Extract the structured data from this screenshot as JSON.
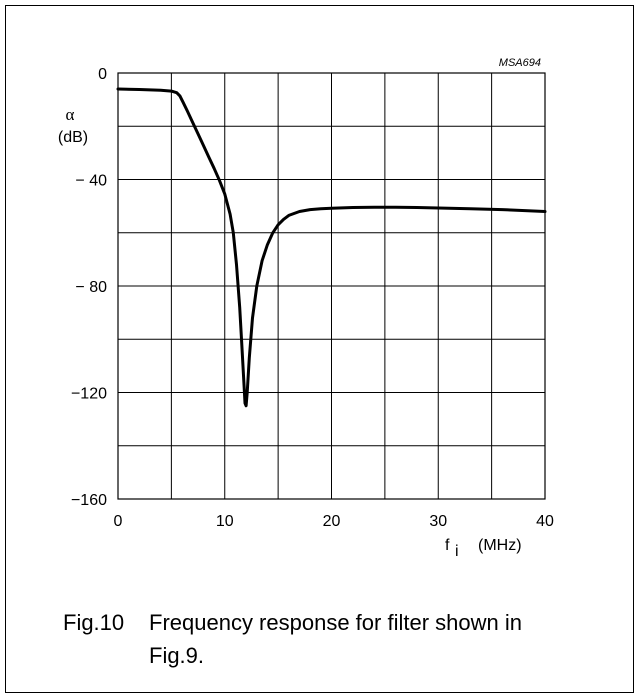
{
  "chart_data": {
    "type": "line",
    "code": "MSA694",
    "ylabel_symbol": "α",
    "ylabel_unit": "(dB)",
    "xlabel_symbol": "f",
    "xlabel_subscript": "i",
    "xlabel_unit": "(MHz)",
    "xlim": [
      0,
      40
    ],
    "ylim": [
      -160,
      0
    ],
    "x_ticks": [
      0,
      10,
      20,
      30,
      40
    ],
    "y_ticks": [
      0,
      -40,
      -80,
      -120,
      -160
    ],
    "y_tick_labels": [
      "0",
      "− 40",
      "− 80",
      "−120",
      "−160"
    ],
    "x_grid_step": 5,
    "y_grid_step": 20,
    "grid": true,
    "line_color": "#000000",
    "series": [
      {
        "x": [
          0,
          2,
          4,
          5,
          5.5,
          5.8,
          6.1,
          6.5,
          7,
          7.5,
          8,
          8.5,
          9,
          9.5,
          10,
          10.5,
          10.8,
          11.1,
          11.4,
          11.6,
          11.8,
          11.9,
          12.0,
          12.1,
          12.3,
          12.6,
          13,
          13.5,
          14,
          14.5,
          15,
          15.5,
          16,
          17,
          18,
          19,
          20,
          22,
          24,
          26,
          28,
          30,
          33,
          36,
          40
        ],
        "y": [
          -6,
          -6.2,
          -6.5,
          -6.8,
          -7.4,
          -8.6,
          -11,
          -14.3,
          -18.6,
          -22.9,
          -27.2,
          -31.5,
          -35.8,
          -40.3,
          -45.5,
          -53,
          -60,
          -72,
          -88,
          -102,
          -117,
          -124,
          -125,
          -120,
          -107,
          -92,
          -80,
          -70.5,
          -64.5,
          -60,
          -57,
          -55,
          -53.5,
          -52,
          -51.3,
          -51,
          -50.8,
          -50.5,
          -50.4,
          -50.4,
          -50.5,
          -50.7,
          -51,
          -51.3,
          -52
        ]
      }
    ]
  },
  "caption": {
    "number": "Fig.10",
    "text": "Frequency response for filter shown in Fig.9."
  }
}
